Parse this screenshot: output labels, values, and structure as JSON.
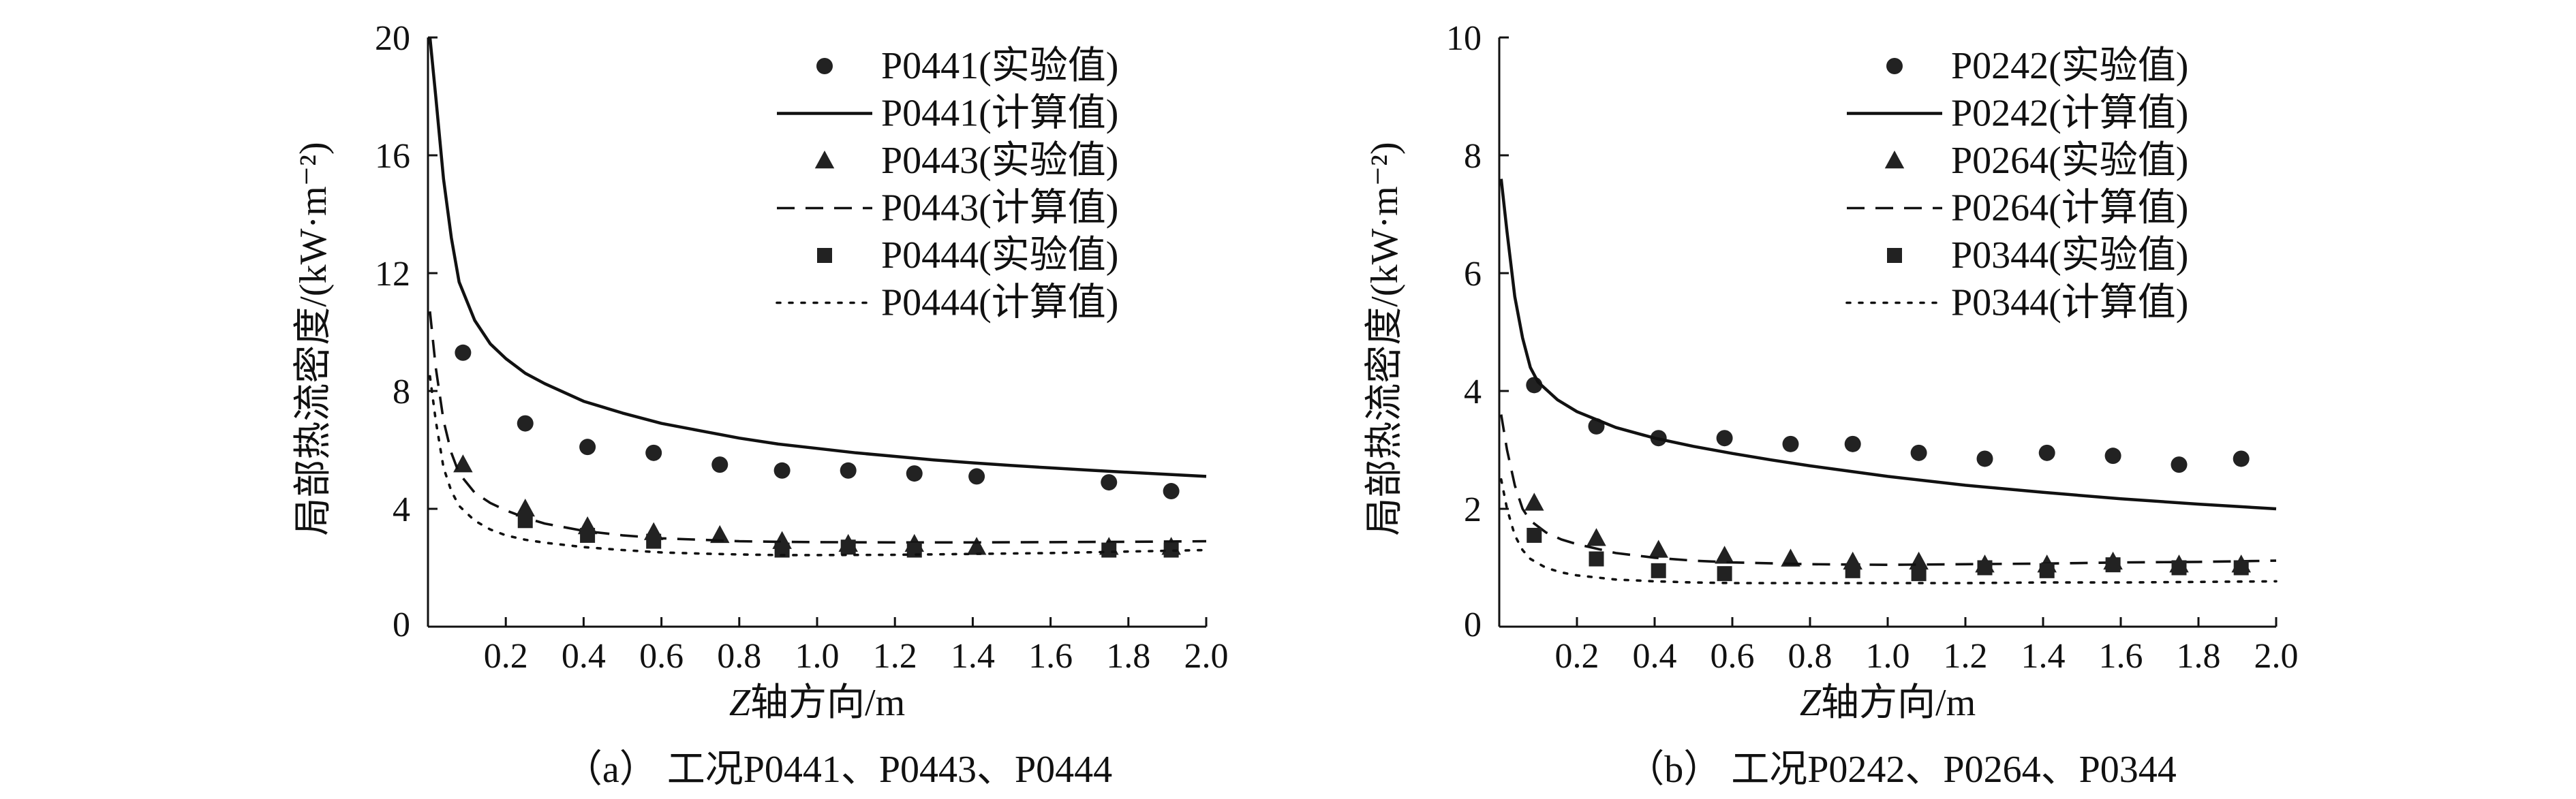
{
  "chart_data": [
    {
      "type": "line",
      "caption": "（a） 工况P0441、P0443、P0444",
      "xlabel_italic": "Z",
      "xlabel_rest": "轴方向/m",
      "ylabel": "局部热流密度/(kW·m⁻²)",
      "xlim": [
        0,
        2.0
      ],
      "ylim": [
        0,
        20
      ],
      "xticks": [
        {
          "v": 0.2,
          "label": "0.2"
        },
        {
          "v": 0.4,
          "label": "0.4"
        },
        {
          "v": 0.6,
          "label": "0.6"
        },
        {
          "v": 0.8,
          "label": "0.8"
        },
        {
          "v": 1.0,
          "label": "1.0"
        },
        {
          "v": 1.2,
          "label": "1.2"
        },
        {
          "v": 1.4,
          "label": "1.4"
        },
        {
          "v": 1.6,
          "label": "1.6"
        },
        {
          "v": 1.8,
          "label": "1.8"
        },
        {
          "v": 2.0,
          "label": "2.0"
        }
      ],
      "yticks": [
        {
          "v": 0,
          "label": "0"
        },
        {
          "v": 4,
          "label": "4"
        },
        {
          "v": 8,
          "label": "8"
        },
        {
          "v": 12,
          "label": "12"
        },
        {
          "v": 16,
          "label": "16"
        },
        {
          "v": 20,
          "label": "20"
        }
      ],
      "legend_position": "top-right",
      "grid": false,
      "series": [
        {
          "name": "P0441(实验值)",
          "kind": "marker",
          "marker": "circle",
          "x": [
            0.09,
            0.25,
            0.41,
            0.58,
            0.75,
            0.91,
            1.08,
            1.25,
            1.41,
            1.75,
            1.91
          ],
          "y": [
            9.3,
            6.9,
            6.1,
            5.9,
            5.5,
            5.3,
            5.3,
            5.2,
            5.1,
            4.9,
            4.6
          ]
        },
        {
          "name": "P0441(计算值)",
          "kind": "line",
          "dash": "solid",
          "x": [
            0.005,
            0.02,
            0.04,
            0.06,
            0.08,
            0.12,
            0.16,
            0.2,
            0.25,
            0.3,
            0.4,
            0.5,
            0.6,
            0.7,
            0.8,
            0.9,
            1.0,
            1.1,
            1.2,
            1.3,
            1.4,
            1.5,
            1.6,
            1.7,
            1.8,
            1.9,
            2.0
          ],
          "y": [
            20.0,
            18.0,
            15.2,
            13.2,
            11.7,
            10.4,
            9.6,
            9.1,
            8.6,
            8.25,
            7.65,
            7.25,
            6.9,
            6.65,
            6.4,
            6.2,
            6.05,
            5.9,
            5.78,
            5.66,
            5.56,
            5.47,
            5.39,
            5.31,
            5.24,
            5.17,
            5.1
          ]
        },
        {
          "name": "P0443(实验值)",
          "kind": "marker",
          "marker": "triangle",
          "x": [
            0.09,
            0.25,
            0.41,
            0.58,
            0.75,
            0.91,
            1.08,
            1.25,
            1.41,
            1.75,
            1.91
          ],
          "y": [
            5.5,
            4.0,
            3.4,
            3.2,
            3.1,
            2.9,
            2.8,
            2.8,
            2.7,
            2.7,
            2.7
          ]
        },
        {
          "name": "P0443(计算值)",
          "kind": "line",
          "dash": "dashed",
          "x": [
            0.005,
            0.02,
            0.04,
            0.06,
            0.08,
            0.12,
            0.16,
            0.2,
            0.25,
            0.3,
            0.4,
            0.5,
            0.6,
            0.7,
            0.8,
            0.9,
            1.0,
            1.2,
            1.4,
            1.6,
            1.8,
            2.0
          ],
          "y": [
            10.7,
            8.8,
            7.0,
            5.9,
            5.2,
            4.55,
            4.2,
            3.95,
            3.7,
            3.5,
            3.25,
            3.1,
            3.0,
            2.95,
            2.9,
            2.88,
            2.87,
            2.86,
            2.86,
            2.87,
            2.88,
            2.9
          ]
        },
        {
          "name": "P0444(实验值)",
          "kind": "marker",
          "marker": "square",
          "x": [
            0.25,
            0.41,
            0.58,
            0.91,
            1.08,
            1.25,
            1.75,
            1.91
          ],
          "y": [
            3.6,
            3.1,
            2.9,
            2.6,
            2.7,
            2.6,
            2.6,
            2.6
          ]
        },
        {
          "name": "P0444(计算值)",
          "kind": "line",
          "dash": "dotted",
          "x": [
            0.005,
            0.02,
            0.04,
            0.06,
            0.08,
            0.12,
            0.16,
            0.2,
            0.25,
            0.3,
            0.4,
            0.5,
            0.6,
            0.7,
            0.8,
            0.9,
            1.0,
            1.2,
            1.4,
            1.6,
            1.8,
            2.0
          ],
          "y": [
            8.5,
            7.0,
            5.4,
            4.6,
            4.1,
            3.6,
            3.3,
            3.1,
            2.95,
            2.85,
            2.7,
            2.6,
            2.52,
            2.48,
            2.45,
            2.43,
            2.43,
            2.44,
            2.47,
            2.5,
            2.55,
            2.6
          ]
        }
      ]
    },
    {
      "type": "line",
      "caption": "（b） 工况P0242、P0264、P0344",
      "xlabel_italic": "Z",
      "xlabel_rest": "轴方向/m",
      "ylabel": "局部热流密度/(kW·m⁻²)",
      "xlim": [
        0,
        2.0
      ],
      "ylim": [
        0,
        10
      ],
      "xticks": [
        {
          "v": 0.2,
          "label": "0.2"
        },
        {
          "v": 0.4,
          "label": "0.4"
        },
        {
          "v": 0.6,
          "label": "0.6"
        },
        {
          "v": 0.8,
          "label": "0.8"
        },
        {
          "v": 1.0,
          "label": "1.0"
        },
        {
          "v": 1.2,
          "label": "1.2"
        },
        {
          "v": 1.4,
          "label": "1.4"
        },
        {
          "v": 1.6,
          "label": "1.6"
        },
        {
          "v": 1.8,
          "label": "1.8"
        },
        {
          "v": 2.0,
          "label": "2.0"
        }
      ],
      "yticks": [
        {
          "v": 0,
          "label": "0"
        },
        {
          "v": 2,
          "label": "2"
        },
        {
          "v": 4,
          "label": "4"
        },
        {
          "v": 6,
          "label": "6"
        },
        {
          "v": 8,
          "label": "8"
        },
        {
          "v": 10,
          "label": "10"
        }
      ],
      "legend_position": "top-right",
      "grid": false,
      "series": [
        {
          "name": "P0242(实验值)",
          "kind": "marker",
          "marker": "circle",
          "x": [
            0.09,
            0.25,
            0.41,
            0.58,
            0.75,
            0.91,
            1.08,
            1.25,
            1.41,
            1.58,
            1.75,
            1.91
          ],
          "y": [
            4.1,
            3.4,
            3.2,
            3.2,
            3.1,
            3.1,
            2.95,
            2.85,
            2.95,
            2.9,
            2.75,
            2.85
          ]
        },
        {
          "name": "P0242(计算值)",
          "kind": "line",
          "dash": "solid",
          "x": [
            0.005,
            0.02,
            0.04,
            0.06,
            0.08,
            0.1,
            0.15,
            0.2,
            0.3,
            0.4,
            0.5,
            0.6,
            0.7,
            0.8,
            0.9,
            1.0,
            1.2,
            1.4,
            1.6,
            1.8,
            2.0
          ],
          "y": [
            7.6,
            6.7,
            5.6,
            4.9,
            4.4,
            4.15,
            3.85,
            3.65,
            3.38,
            3.2,
            3.06,
            2.94,
            2.83,
            2.73,
            2.64,
            2.55,
            2.4,
            2.28,
            2.17,
            2.08,
            2.0
          ]
        },
        {
          "name": "P0264(实验值)",
          "kind": "marker",
          "marker": "triangle",
          "x": [
            0.09,
            0.25,
            0.41,
            0.58,
            0.75,
            0.91,
            1.08,
            1.25,
            1.41,
            1.58,
            1.75,
            1.91
          ],
          "y": [
            2.1,
            1.5,
            1.3,
            1.2,
            1.15,
            1.1,
            1.1,
            1.05,
            1.05,
            1.1,
            1.05,
            1.05
          ]
        },
        {
          "name": "P0264(计算值)",
          "kind": "line",
          "dash": "dashed",
          "x": [
            0.005,
            0.02,
            0.04,
            0.06,
            0.08,
            0.12,
            0.16,
            0.2,
            0.3,
            0.4,
            0.5,
            0.6,
            0.8,
            1.0,
            1.2,
            1.4,
            1.6,
            1.8,
            2.0
          ],
          "y": [
            3.6,
            3.0,
            2.4,
            2.0,
            1.8,
            1.6,
            1.48,
            1.4,
            1.25,
            1.17,
            1.12,
            1.09,
            1.06,
            1.05,
            1.06,
            1.07,
            1.09,
            1.1,
            1.12
          ]
        },
        {
          "name": "P0344(实验值)",
          "kind": "marker",
          "marker": "square",
          "x": [
            0.09,
            0.25,
            0.41,
            0.58,
            0.91,
            1.08,
            1.25,
            1.41,
            1.58,
            1.75,
            1.91
          ],
          "y": [
            1.55,
            1.15,
            0.95,
            0.9,
            0.95,
            0.9,
            1.0,
            0.95,
            1.05,
            1.0,
            1.0
          ]
        },
        {
          "name": "P0344(计算值)",
          "kind": "line",
          "dash": "dotted",
          "x": [
            0.005,
            0.02,
            0.04,
            0.06,
            0.08,
            0.12,
            0.16,
            0.2,
            0.3,
            0.4,
            0.5,
            0.6,
            0.8,
            1.0,
            1.2,
            1.4,
            1.6,
            1.8,
            2.0
          ],
          "y": [
            2.5,
            2.0,
            1.55,
            1.3,
            1.15,
            1.0,
            0.92,
            0.87,
            0.8,
            0.77,
            0.75,
            0.74,
            0.74,
            0.74,
            0.74,
            0.75,
            0.75,
            0.76,
            0.77
          ]
        }
      ]
    }
  ]
}
